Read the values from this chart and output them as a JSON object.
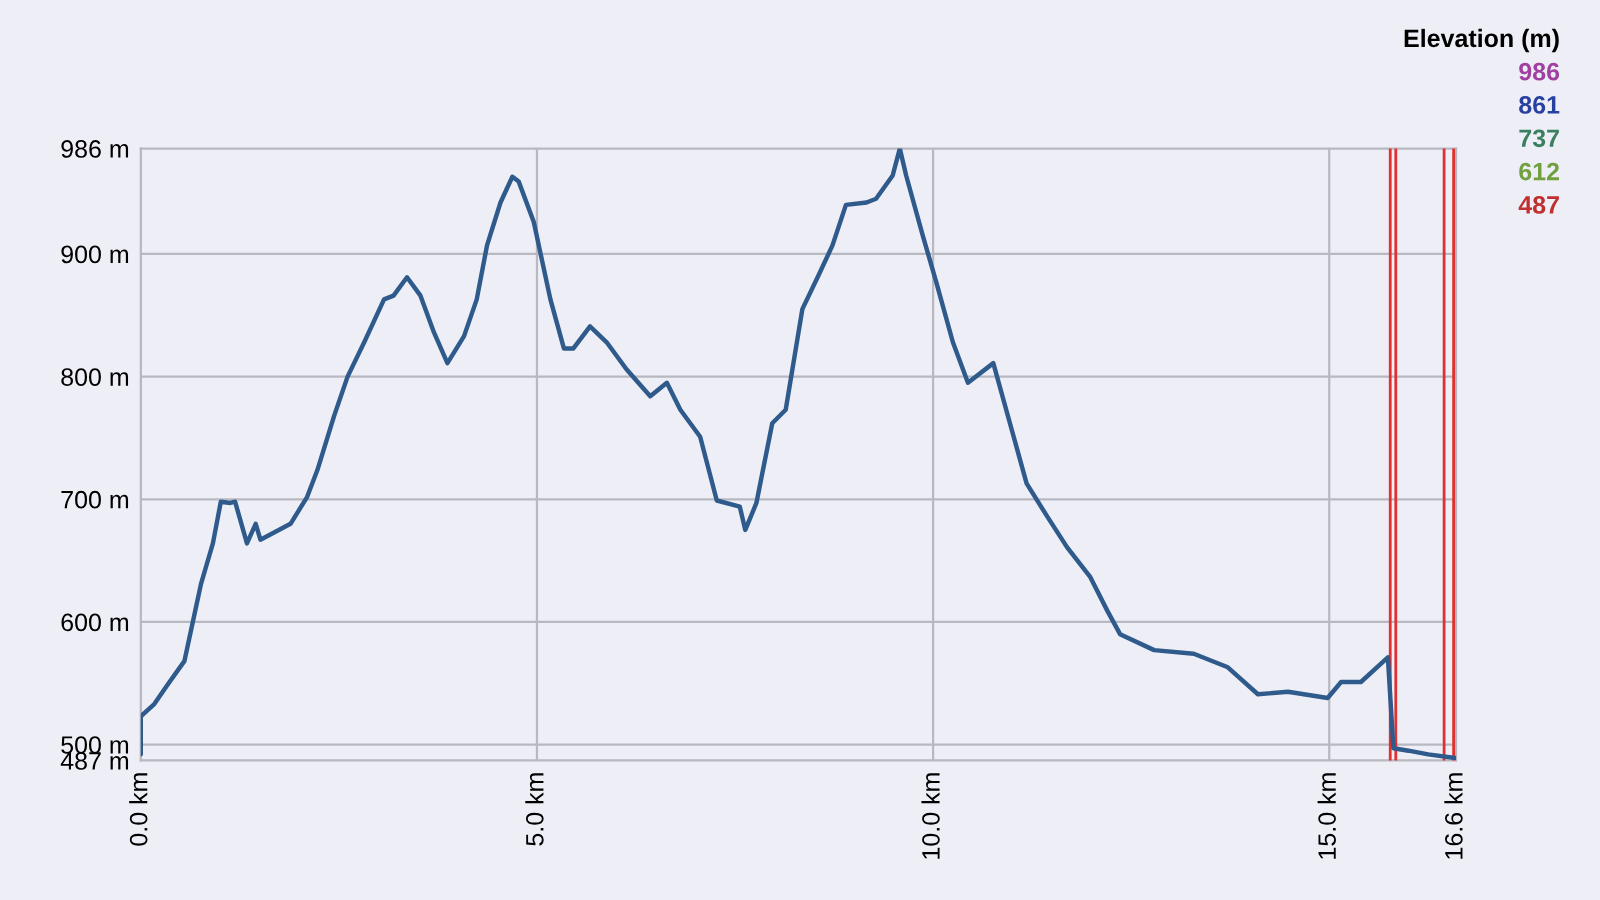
{
  "chart_data": {
    "type": "line",
    "x": [
      0,
      0,
      0.17,
      0.34,
      0.55,
      0.67,
      0.76,
      0.91,
      1.01,
      1.13,
      1.19,
      1.34,
      1.45,
      1.51,
      1.89,
      2.1,
      2.23,
      2.44,
      2.61,
      2.82,
      3.07,
      3.19,
      3.36,
      3.53,
      3.7,
      3.87,
      4.08,
      4.24,
      4.37,
      4.54,
      4.69,
      4.77,
      4.96,
      5.17,
      5.34,
      5.46,
      5.67,
      5.88,
      6.13,
      6.43,
      6.64,
      6.81,
      7.06,
      7.27,
      7.56,
      7.63,
      7.77,
      7.97,
      8.14,
      8.35,
      8.55,
      8.73,
      8.9,
      9.16,
      9.28,
      9.49,
      9.58,
      9.66,
      9.87,
      10.04,
      10.25,
      10.44,
      10.76,
      10.97,
      11.18,
      11.44,
      11.69,
      11.98,
      12.2,
      12.36,
      12.79,
      13.29,
      13.72,
      14.1,
      14.48,
      14.98,
      15.15,
      15.4,
      15.74,
      15.81,
      16,
      16.25,
      16.59
    ],
    "values": [
      492,
      523,
      533,
      549,
      568,
      604,
      631,
      664,
      698,
      697,
      698,
      664,
      680,
      667,
      680,
      702,
      724,
      768,
      800,
      828,
      863,
      866,
      881,
      866,
      836,
      811,
      833,
      863,
      907,
      942,
      963,
      959,
      926,
      863,
      823,
      823,
      841,
      828,
      806,
      784,
      795,
      773,
      751,
      699,
      694,
      675,
      697,
      762,
      773,
      855,
      882,
      907,
      940,
      942,
      945,
      964,
      986,
      964,
      915,
      877,
      828,
      795,
      811,
      762,
      713,
      686,
      661,
      637,
      609,
      590,
      577,
      574,
      563,
      541,
      543,
      538,
      551,
      551,
      571,
      497,
      495,
      492,
      489
    ],
    "xlim": [
      0,
      16.6
    ],
    "ylim": [
      487,
      986
    ],
    "xticks": [
      {
        "value": 0,
        "label": "0.0 km"
      },
      {
        "value": 5,
        "label": "5.0 km"
      },
      {
        "value": 10,
        "label": "10.0 km"
      },
      {
        "value": 15,
        "label": "15.0 km"
      },
      {
        "value": 16.6,
        "label": "16.6 km"
      }
    ],
    "yticks": [
      {
        "value": 487,
        "label": "487 m"
      },
      {
        "value": 500,
        "label": "500 m"
      },
      {
        "value": 600,
        "label": "600 m"
      },
      {
        "value": 700,
        "label": "700 m"
      },
      {
        "value": 800,
        "label": "800 m"
      },
      {
        "value": 900,
        "label": "900 m"
      },
      {
        "value": 986,
        "label": "986 m"
      }
    ],
    "grid": true,
    "color": "#2f5a8c",
    "annotations": [
      "Elevation (m)",
      "986",
      "861",
      "737",
      "612",
      "487"
    ],
    "ref_lines": [
      {
        "axis": "x",
        "value": 15.77,
        "color": "#e03030"
      },
      {
        "axis": "x",
        "value": 15.84,
        "color": "#e03030"
      },
      {
        "axis": "x",
        "value": 16.45,
        "color": "#e03030"
      },
      {
        "axis": "x",
        "value": 16.57,
        "color": "#e03030"
      }
    ]
  }
}
